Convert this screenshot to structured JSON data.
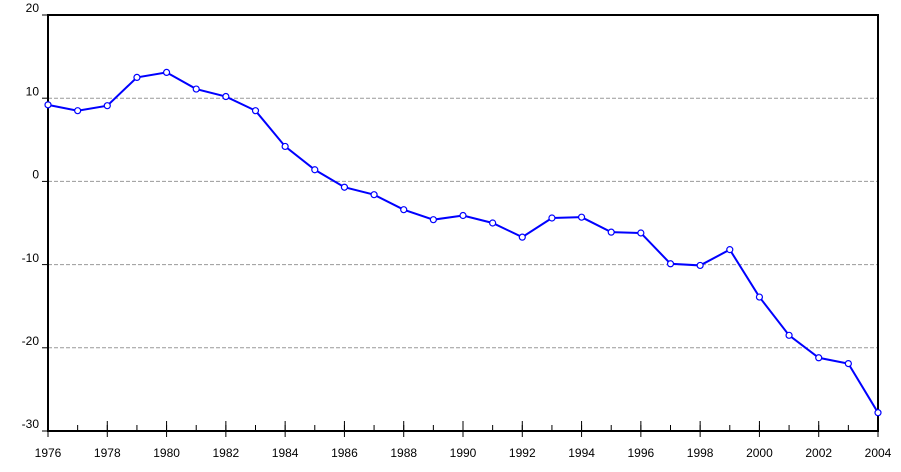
{
  "chart_data": {
    "type": "line",
    "x": [
      1976,
      1977,
      1978,
      1979,
      1980,
      1981,
      1982,
      1983,
      1984,
      1985,
      1986,
      1987,
      1988,
      1989,
      1990,
      1991,
      1992,
      1993,
      1994,
      1995,
      1996,
      1997,
      1998,
      1999,
      2000,
      2001,
      2002,
      2003,
      2004
    ],
    "values": [
      9.2,
      8.5,
      9.1,
      12.5,
      13.1,
      11.1,
      10.2,
      8.5,
      4.2,
      1.4,
      -0.7,
      -1.6,
      -3.4,
      -4.6,
      -4.1,
      -5.0,
      -6.7,
      -4.4,
      -4.3,
      -6.1,
      -6.2,
      -9.9,
      -10.1,
      -8.2,
      -13.9,
      -18.5,
      -21.2,
      -21.9,
      -27.8
    ],
    "color": "#0000ff",
    "xlim": [
      1976,
      2004
    ],
    "xticks": [
      1976,
      1978,
      1980,
      1982,
      1984,
      1986,
      1988,
      1990,
      1992,
      1994,
      1996,
      1998,
      2000,
      2002,
      2004
    ],
    "ylim": [
      -30,
      20
    ],
    "yticks": [
      -30,
      -20,
      -10,
      0,
      10,
      20
    ],
    "grid": true,
    "markers": true
  }
}
